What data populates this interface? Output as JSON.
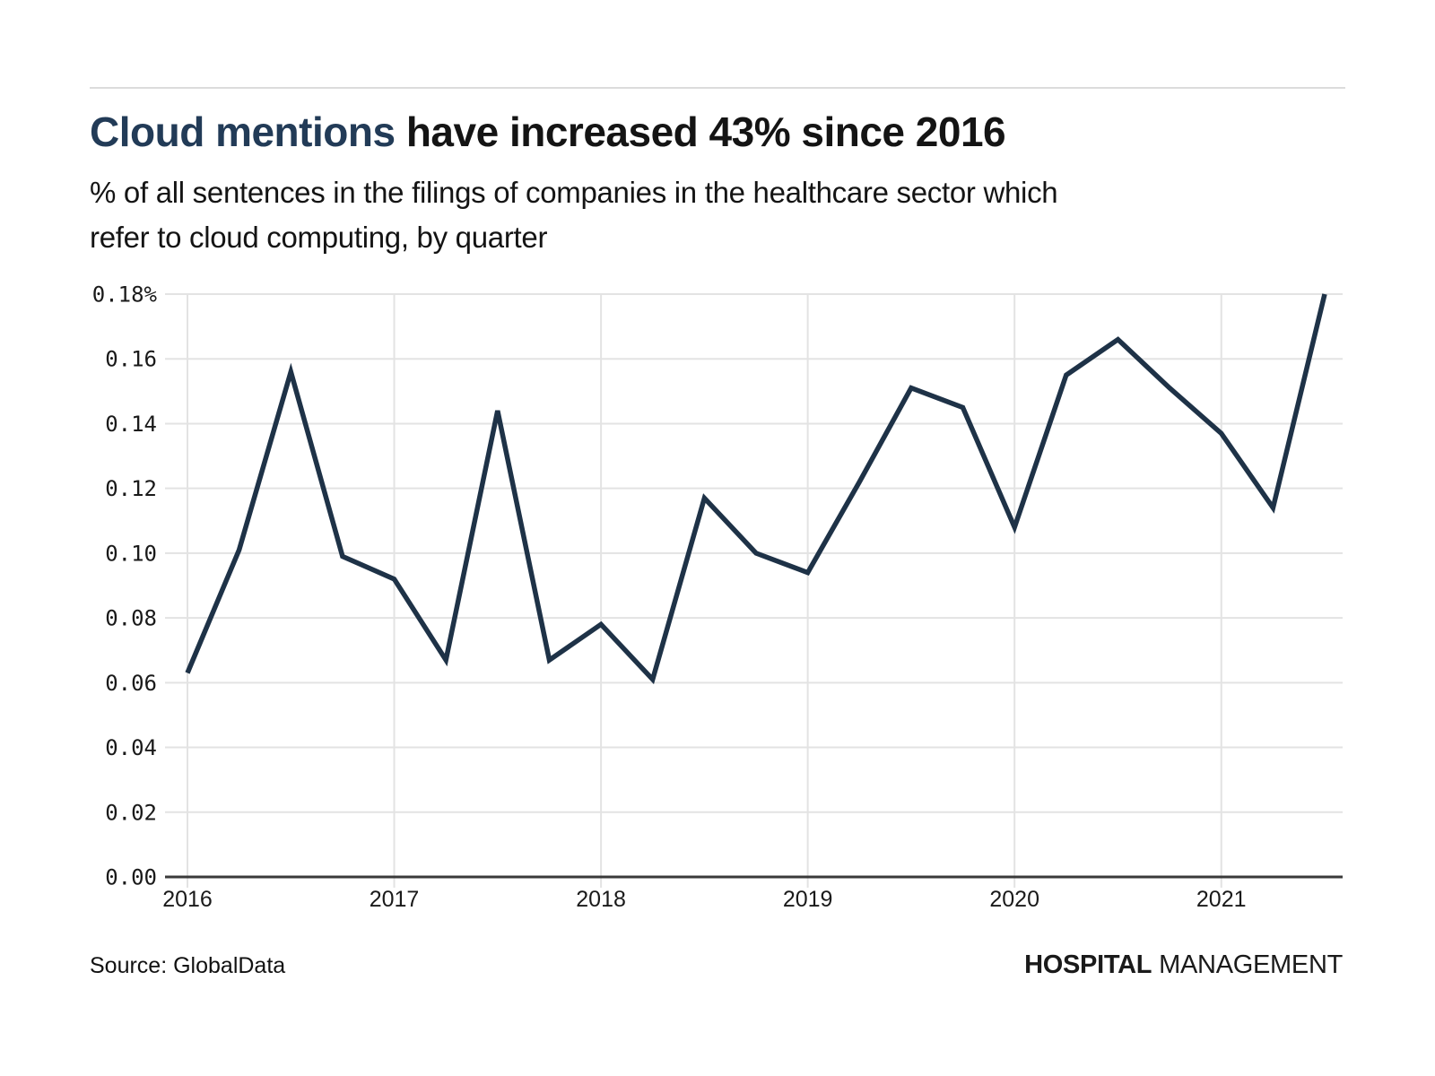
{
  "header": {
    "title_highlight": "Cloud mentions",
    "title_rest": " have increased 43% since 2016",
    "subtitle_line1": "% of all sentences in the filings of companies in the healthcare sector which",
    "subtitle_line2": "refer to cloud computing, by quarter"
  },
  "footer": {
    "source": "Source: GlobalData",
    "brand_bold": "HOSPITAL",
    "brand_light": "MANAGEMENT"
  },
  "colors": {
    "line": "#1e3247",
    "title_accent": "#223b57",
    "grid": "#e3e3e3",
    "axis": "#3a3a3a",
    "tick_text": "#1a1a1a"
  },
  "chart_data": {
    "type": "line",
    "title": "Cloud mentions have increased 43% since 2016",
    "subtitle": "% of all sentences in the filings of companies in the healthcare sector which refer to cloud computing, by quarter",
    "series_name": "% of sentences referring to cloud computing",
    "x": [
      "2016-Q1",
      "2016-Q2",
      "2016-Q3",
      "2016-Q4",
      "2017-Q1",
      "2017-Q2",
      "2017-Q3",
      "2017-Q4",
      "2018-Q1",
      "2018-Q2",
      "2018-Q3",
      "2018-Q4",
      "2019-Q1",
      "2019-Q2",
      "2019-Q3",
      "2019-Q4",
      "2020-Q1",
      "2020-Q2",
      "2020-Q3",
      "2020-Q4",
      "2021-Q1",
      "2021-Q2",
      "2021-Q3"
    ],
    "values": [
      0.063,
      0.101,
      0.156,
      0.099,
      0.092,
      0.067,
      0.144,
      0.067,
      0.078,
      0.061,
      0.117,
      0.1,
      0.094,
      0.122,
      0.151,
      0.145,
      0.108,
      0.155,
      0.166,
      0.151,
      0.137,
      0.114,
      0.18
    ],
    "ylim": [
      0,
      0.18
    ],
    "y_tick_values": [
      0.18,
      0.16,
      0.14,
      0.12,
      0.1,
      0.08,
      0.06,
      0.04,
      0.02,
      0.0
    ],
    "y_tick_labels": [
      "0.18%",
      "0.16",
      "0.14",
      "0.12",
      "0.10",
      "0.08",
      "0.06",
      "0.04",
      "0.02",
      "0.00"
    ],
    "x_tick_labels": [
      "2016",
      "2017",
      "2018",
      "2019",
      "2020",
      "2021"
    ],
    "x_tick_quarter_index": [
      0,
      4,
      8,
      12,
      16,
      20
    ],
    "grid": true,
    "legend": false
  }
}
